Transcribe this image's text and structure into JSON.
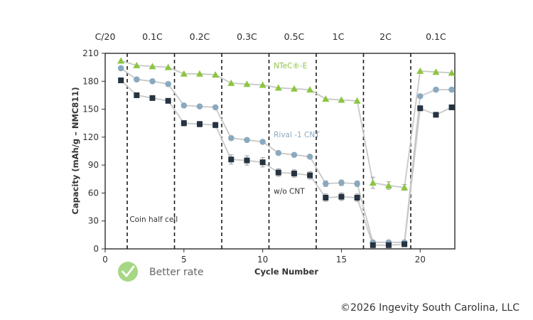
{
  "chart_data": {
    "type": "line",
    "title": "",
    "xlabel": "Cycle Number",
    "ylabel": "Capacity (mAh/g – NMC811)",
    "xlim": [
      0,
      22.2
    ],
    "ylim": [
      0,
      210
    ],
    "xticks": [
      0,
      5,
      10,
      15,
      20
    ],
    "yticks": [
      0,
      30,
      60,
      90,
      120,
      150,
      180,
      210
    ],
    "grid": false,
    "rate_bands": [
      {
        "label": "C/20",
        "x_center": 0
      },
      {
        "label": "0.1C",
        "x_center": 3
      },
      {
        "label": "0.2C",
        "x_center": 6
      },
      {
        "label": "0.3C",
        "x_center": 9
      },
      {
        "label": "0.5C",
        "x_center": 12
      },
      {
        "label": "1C",
        "x_center": 14.8
      },
      {
        "label": "2C",
        "x_center": 17.8
      },
      {
        "label": "0.1C",
        "x_center": 21
      }
    ],
    "dividers": [
      1.4,
      4.4,
      7.4,
      10.4,
      13.4,
      16.4,
      19.4
    ],
    "series": [
      {
        "name": "NTeC®-E",
        "marker": "triangle",
        "color": "#8cc63f",
        "x": [
          1,
          2,
          3,
          4,
          5,
          6,
          7,
          8,
          9,
          10,
          11,
          12,
          13,
          14,
          15,
          16,
          17,
          18,
          19,
          20,
          21,
          22
        ],
        "y": [
          202,
          197,
          196,
          195,
          188,
          188,
          187,
          178,
          177,
          176,
          173,
          172,
          171,
          161,
          160,
          159,
          71,
          68,
          66,
          191,
          190,
          189
        ],
        "err": [
          0,
          0,
          0,
          0,
          0,
          0,
          0,
          0,
          0,
          0,
          0,
          0,
          0,
          0,
          0,
          0,
          6,
          4,
          3,
          0,
          0,
          0
        ]
      },
      {
        "name": "Rival -1 CNT",
        "marker": "circle",
        "color": "#8aa9bf",
        "x": [
          1,
          2,
          3,
          4,
          5,
          6,
          7,
          8,
          9,
          10,
          11,
          12,
          13,
          14,
          15,
          16,
          17,
          18,
          19,
          20,
          21,
          22
        ],
        "y": [
          194,
          182,
          180,
          177,
          154,
          153,
          152,
          119,
          117,
          115,
          103,
          101,
          99,
          70,
          71,
          70,
          7,
          7,
          7,
          164,
          171,
          171
        ],
        "err": [
          0,
          0,
          0,
          0,
          0,
          0,
          0,
          0,
          0,
          0,
          0,
          0,
          0,
          3,
          3,
          3,
          1,
          1,
          1,
          0,
          0,
          0
        ]
      },
      {
        "name": "w/o CNT",
        "marker": "square",
        "color": "#263340",
        "x": [
          1,
          2,
          3,
          4,
          5,
          6,
          7,
          8,
          9,
          10,
          11,
          12,
          13,
          14,
          15,
          16,
          17,
          18,
          19,
          20,
          21,
          22
        ],
        "y": [
          181,
          165,
          162,
          159,
          135,
          134,
          133,
          96,
          95,
          93,
          82,
          81,
          79,
          55,
          56,
          55,
          4,
          4,
          5,
          151,
          144,
          152
        ],
        "err": [
          0,
          0,
          0,
          0,
          3,
          3,
          3,
          5,
          5,
          5,
          4,
          4,
          4,
          4,
          4,
          4,
          1,
          1,
          1,
          0,
          0,
          0
        ]
      }
    ],
    "annotations": [
      {
        "text": "NTeC®-E",
        "x": 10.7,
        "y": 194,
        "color": "#8cc63f"
      },
      {
        "text": "Rival -1 CNT",
        "x": 10.7,
        "y": 120,
        "color": "#8aa9bf"
      },
      {
        "text": "w/o CNT",
        "x": 10.7,
        "y": 59,
        "color": "#333333"
      },
      {
        "text": "Coin half cell",
        "x": 1.55,
        "y": 29,
        "color": "#333333"
      }
    ],
    "line_color": "#c8c8c8"
  },
  "badge": {
    "icon": "checkmark-icon",
    "color": "#a6d785",
    "text": "Better rate"
  },
  "footer": {
    "copyright": "©2026 Ingevity South Carolina, LLC"
  }
}
